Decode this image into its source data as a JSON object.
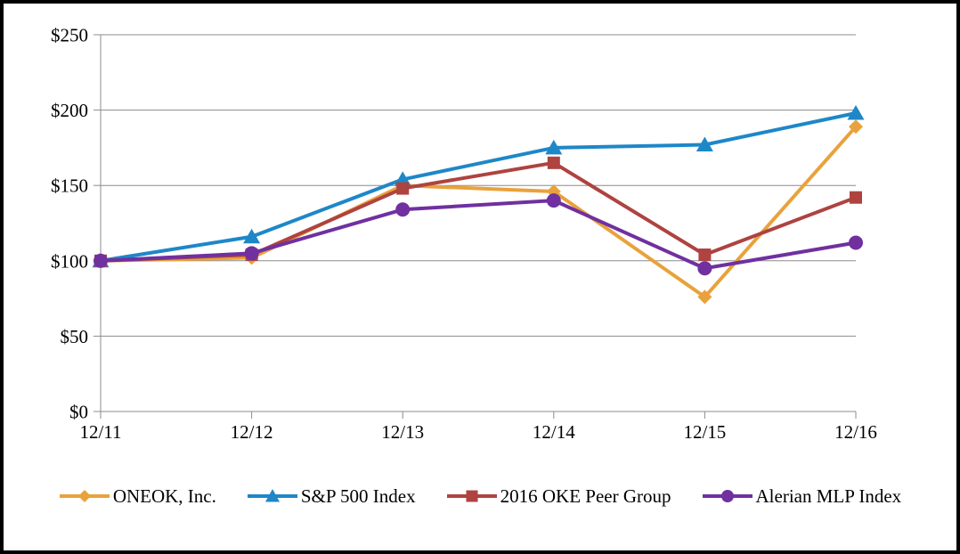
{
  "chart_data": {
    "type": "line",
    "title": "",
    "xlabel": "",
    "ylabel": "",
    "categories": [
      "12/11",
      "12/12",
      "12/13",
      "12/14",
      "12/15",
      "12/16"
    ],
    "series": [
      {
        "name": "ONEOK, Inc.",
        "marker": "diamond",
        "color": "#E9A23B",
        "values": [
          100,
          102,
          150,
          146,
          76,
          189
        ]
      },
      {
        "name": "S&P 500 Index",
        "marker": "triangle",
        "color": "#1E87C8",
        "values": [
          100,
          116,
          154,
          175,
          177,
          198
        ]
      },
      {
        "name": "2016 OKE Peer Group",
        "marker": "square",
        "color": "#AE4340",
        "values": [
          100,
          104,
          148,
          165,
          104,
          142
        ]
      },
      {
        "name": "Alerian MLP Index",
        "marker": "circle",
        "color": "#7030A0",
        "values": [
          100,
          105,
          134,
          140,
          95,
          112
        ]
      }
    ],
    "ylim": [
      0,
      250
    ],
    "y_tick_step": 50,
    "y_tick_labels": [
      "$0",
      "$50",
      "$100",
      "$150",
      "$200",
      "$250"
    ],
    "grid": true,
    "legend_position": "bottom",
    "colors": {
      "gridline": "#8C8C8C",
      "axis": "#8C8C8C",
      "text": "#000000",
      "background": "#FFFFFF",
      "frame_border": "#000000"
    }
  }
}
